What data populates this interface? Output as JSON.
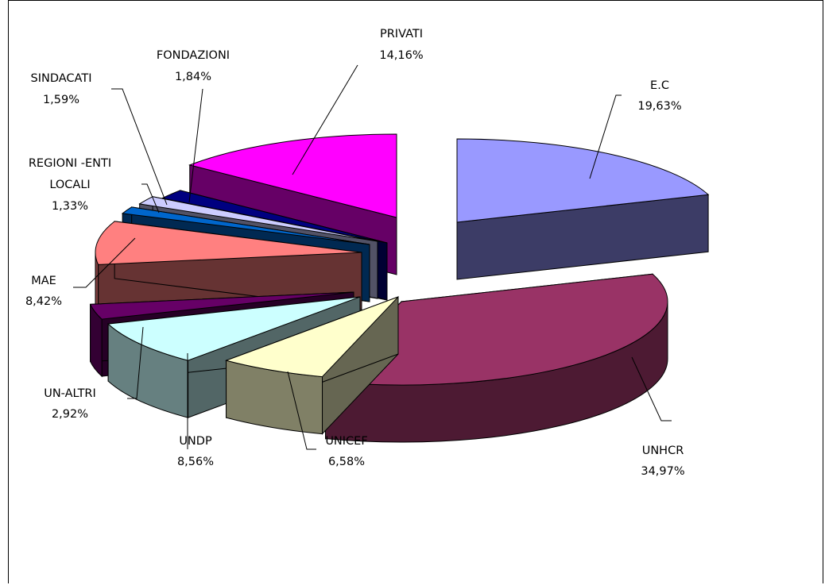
{
  "chart_data": {
    "type": "pie",
    "title": "",
    "style": "3d-exploded",
    "slices": [
      {
        "label": "E.C",
        "value_label": "19,63%",
        "value": 19.63,
        "color": "#9999ff",
        "side": "#4b4b80",
        "shade": "#3c3c66"
      },
      {
        "label": "UNHCR",
        "value_label": "34,97%",
        "value": 34.97,
        "color": "#993366",
        "side": "#4d1a33",
        "shade": "#3d1429"
      },
      {
        "label": "UNICEF",
        "value_label": "6,58%",
        "value": 6.58,
        "color": "#ffffcc",
        "side": "#808066",
        "shade": "#666652"
      },
      {
        "label": "UNDP",
        "value_label": "8,56%",
        "value": 8.56,
        "color": "#ccffff",
        "side": "#668080",
        "shade": "#526666"
      },
      {
        "label": "UN-ALTRI",
        "value_label": "2,92%",
        "value": 2.92,
        "color": "#660066",
        "side": "#330033",
        "shade": "#260026"
      },
      {
        "label": "MAE",
        "value_label": "8,42%",
        "value": 8.42,
        "color": "#ff8080",
        "side": "#804040",
        "shade": "#663333"
      },
      {
        "label": "REGIONI -ENTI LOCALI",
        "value_label": "1,33%",
        "value": 1.33,
        "color": "#0066cc",
        "side": "#003366",
        "shade": "#002952"
      },
      {
        "label": "SINDACATI",
        "value_label": "1,59%",
        "value": 1.59,
        "color": "#ccccff",
        "side": "#666680",
        "shade": "#525266"
      },
      {
        "label": "FONDAZIONI",
        "value_label": "1,84%",
        "value": 1.84,
        "color": "#000080",
        "side": "#000040",
        "shade": "#000033"
      },
      {
        "label": "PRIVATI",
        "value_label": "14,16%",
        "value": 14.16,
        "color": "#ff00ff",
        "side": "#800080",
        "shade": "#660066"
      }
    ]
  }
}
